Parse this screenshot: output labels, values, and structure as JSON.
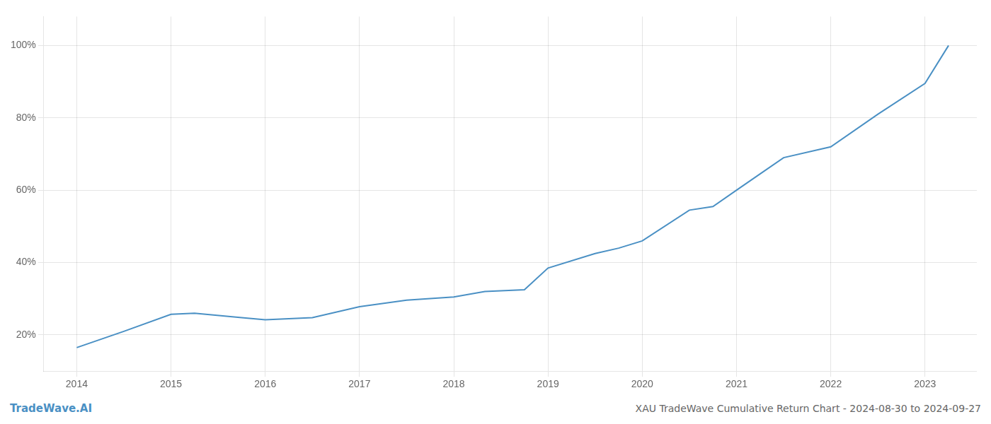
{
  "chart_data": {
    "type": "line",
    "title": "XAU TradeWave Cumulative Return Chart - 2024-08-30 to 2024-09-27",
    "annotations": [
      "TradeWave.AI"
    ],
    "color": "#4a90c4",
    "x": [
      2014.0,
      2014.5,
      2015.0,
      2015.25,
      2015.75,
      2016.0,
      2016.5,
      2017.0,
      2017.5,
      2018.0,
      2018.33,
      2018.75,
      2019.0,
      2019.5,
      2019.75,
      2020.0,
      2020.5,
      2020.75,
      2021.0,
      2021.25,
      2021.5,
      2022.0,
      2022.5,
      2023.0,
      2023.25
    ],
    "values": [
      0.165,
      0.21,
      0.257,
      0.26,
      0.248,
      0.242,
      0.248,
      0.278,
      0.296,
      0.305,
      0.32,
      0.325,
      0.385,
      0.425,
      0.44,
      0.46,
      0.545,
      0.555,
      0.6,
      0.645,
      0.69,
      0.72,
      0.81,
      0.895,
      1.0
    ],
    "xlim": [
      2013.65,
      2023.55
    ],
    "ylim": [
      0.1,
      1.08
    ],
    "xticks": [
      2014,
      2015,
      2016,
      2017,
      2018,
      2019,
      2020,
      2021,
      2022,
      2023
    ],
    "yticks": [
      {
        "value": 0.2,
        "label": "20%"
      },
      {
        "value": 0.4,
        "label": "40%"
      },
      {
        "value": 0.6,
        "label": "60%"
      },
      {
        "value": 0.8,
        "label": "80%"
      },
      {
        "value": 1.0,
        "label": "100%"
      }
    ],
    "grid": true
  }
}
